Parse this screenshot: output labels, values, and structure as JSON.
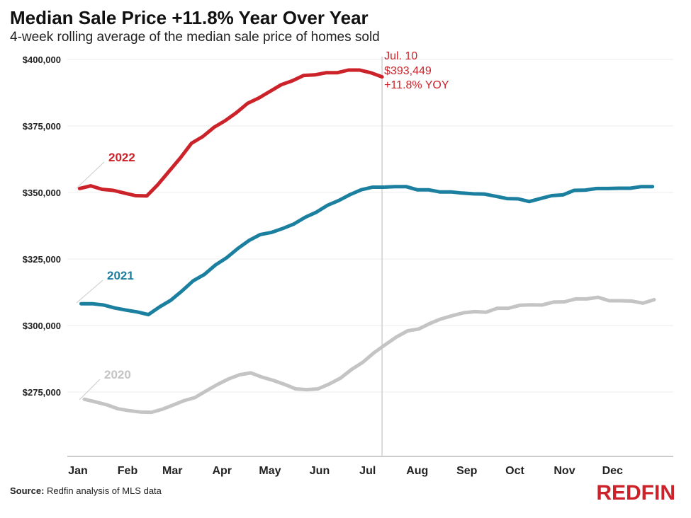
{
  "header": {
    "title": "Median Sale Price +11.8% Year Over Year",
    "subtitle": "4-week rolling average of the median sale price of homes sold"
  },
  "footer": {
    "source_label": "Source:",
    "source_text": "Redfin analysis of MLS data",
    "brand": "REDFIN"
  },
  "colors": {
    "2022": "#cc2229",
    "2021": "#1b7fa0",
    "2020": "#c4c4c4",
    "grid": "#eeeeee",
    "marker": "#d0d0d0"
  },
  "chart_data": {
    "type": "line",
    "title": "Median Sale Price +11.8% Year Over Year",
    "subtitle": "4-week rolling average of the median sale price of homes sold",
    "xlabel": "",
    "ylabel": "",
    "x_ticks": [
      "Jan",
      "Feb",
      "Mar",
      "Apr",
      "May",
      "Jun",
      "Jul",
      "Aug",
      "Sep",
      "Oct",
      "Nov",
      "Dec"
    ],
    "y_ticks": [
      275000,
      300000,
      325000,
      350000,
      375000,
      400000
    ],
    "y_tick_labels": [
      "$275,000",
      "$300,000",
      "$325,000",
      "$350,000",
      "$375,000",
      "$400,000"
    ],
    "ylim": [
      250000,
      400000
    ],
    "grid": true,
    "series": [
      {
        "name": "2022",
        "x": [
          "Jan 2",
          "Jan 9",
          "Jan 16",
          "Jan 23",
          "Jan 30",
          "Feb 6",
          "Feb 13",
          "Feb 20",
          "Feb 27",
          "Mar 6",
          "Mar 13",
          "Mar 20",
          "Mar 27",
          "Apr 3",
          "Apr 10",
          "Apr 17",
          "Apr 24",
          "May 1",
          "May 8",
          "May 15",
          "May 22",
          "May 29",
          "Jun 5",
          "Jun 12",
          "Jun 19",
          "Jun 26",
          "Jul 3",
          "Jul 10"
        ],
        "values": [
          351500,
          352500,
          351200,
          350800,
          349800,
          348800,
          348700,
          353000,
          358000,
          363000,
          368500,
          371000,
          374500,
          377000,
          380000,
          383500,
          385500,
          388000,
          390500,
          392000,
          394000,
          394200,
          395000,
          395000,
          396000,
          396000,
          395000,
          393449
        ]
      },
      {
        "name": "2021",
        "x": [
          "Jan 3",
          "Jan 10",
          "Jan 17",
          "Jan 24",
          "Jan 31",
          "Feb 7",
          "Feb 14",
          "Feb 21",
          "Feb 28",
          "Mar 7",
          "Mar 14",
          "Mar 21",
          "Mar 28",
          "Apr 4",
          "Apr 11",
          "Apr 18",
          "Apr 25",
          "May 2",
          "May 9",
          "May 16",
          "May 23",
          "May 30",
          "Jun 6",
          "Jun 13",
          "Jun 20",
          "Jun 27",
          "Jul 4",
          "Jul 11",
          "Jul 18",
          "Jul 25",
          "Aug 1",
          "Aug 8",
          "Aug 15",
          "Aug 22",
          "Aug 29",
          "Sep 5",
          "Sep 12",
          "Sep 19",
          "Sep 26",
          "Oct 3",
          "Oct 10",
          "Oct 17",
          "Oct 24",
          "Oct 31",
          "Nov 7",
          "Nov 14",
          "Nov 21",
          "Nov 28",
          "Dec 5",
          "Dec 12",
          "Dec 19",
          "Dec 26"
        ],
        "values": [
          308200,
          308200,
          307700,
          306600,
          305800,
          305100,
          304100,
          307000,
          309500,
          313000,
          316800,
          319200,
          322800,
          325500,
          329000,
          332000,
          334200,
          335000,
          336500,
          338200,
          340700,
          342600,
          345200,
          347000,
          349200,
          351000,
          352000,
          352000,
          352200,
          352200,
          351000,
          351000,
          350200,
          350200,
          349800,
          349500,
          349400,
          348600,
          347700,
          347600,
          346600,
          347700,
          348800,
          349100,
          350800,
          350900,
          351500,
          351500,
          351600,
          351600,
          352200,
          352200
        ]
      },
      {
        "name": "2020",
        "x": [
          "Jan 5",
          "Jan 12",
          "Jan 19",
          "Jan 26",
          "Feb 2",
          "Feb 9",
          "Feb 16",
          "Feb 23",
          "Mar 1",
          "Mar 8",
          "Mar 15",
          "Mar 22",
          "Mar 29",
          "Apr 5",
          "Apr 12",
          "Apr 19",
          "Apr 26",
          "May 3",
          "May 10",
          "May 17",
          "May 24",
          "May 31",
          "Jun 7",
          "Jun 14",
          "Jun 21",
          "Jun 28",
          "Jul 5",
          "Jul 12",
          "Jul 19",
          "Jul 26",
          "Aug 2",
          "Aug 9",
          "Aug 16",
          "Aug 23",
          "Aug 30",
          "Sep 6",
          "Sep 13",
          "Sep 20",
          "Sep 27",
          "Oct 4",
          "Oct 11",
          "Oct 18",
          "Oct 25",
          "Nov 1",
          "Nov 8",
          "Nov 15",
          "Nov 22",
          "Nov 29",
          "Dec 6",
          "Dec 13",
          "Dec 20",
          "Dec 27"
        ],
        "values": [
          272300,
          271300,
          270200,
          268700,
          268000,
          267500,
          267400,
          268600,
          270000,
          271700,
          272900,
          275400,
          277800,
          279900,
          281500,
          282200,
          280600,
          279400,
          277900,
          276200,
          275900,
          276200,
          278000,
          280200,
          283500,
          286200,
          289800,
          292800,
          295700,
          298000,
          298700,
          300800,
          302500,
          303700,
          304800,
          305200,
          305000,
          306500,
          306500,
          307600,
          307800,
          307700,
          308800,
          308900,
          310000,
          310000,
          310600,
          309300,
          309300,
          309200,
          308400,
          309700
        ]
      }
    ],
    "series_labels": [
      "2022",
      "2021",
      "2020"
    ],
    "highlight": {
      "x": "Jul 10",
      "date_label": "Jul. 10",
      "value_label": "$393,449",
      "change_label": "+11.8% YOY"
    }
  }
}
